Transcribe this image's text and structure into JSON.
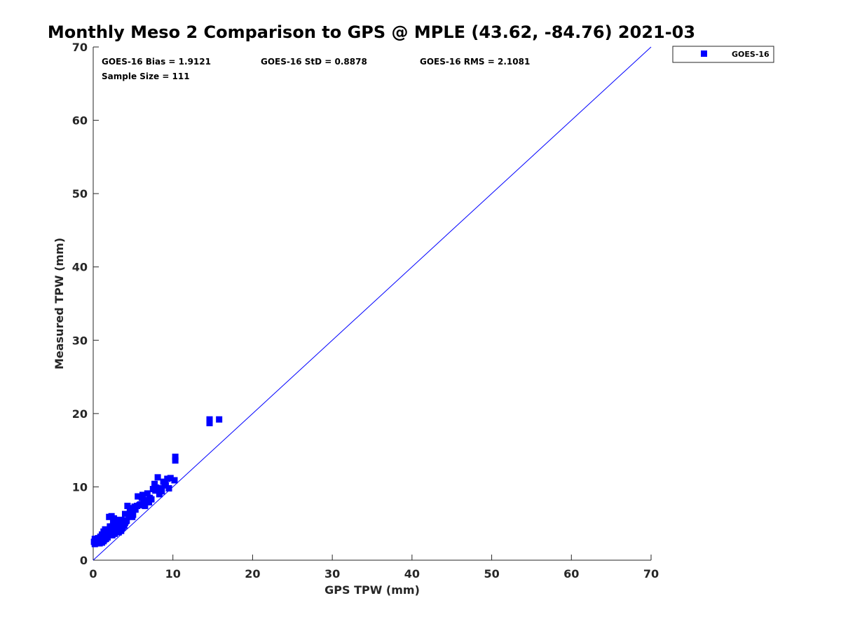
{
  "chart_data": {
    "type": "scatter",
    "title": "Monthly Meso 2 Comparison to GPS @ MPLE (43.62, -84.76) 2021-03",
    "xlabel": "GPS TPW (mm)",
    "ylabel": "Measured TPW (mm)",
    "xlim": [
      0,
      70
    ],
    "ylim": [
      0,
      70
    ],
    "xticks": [
      "0",
      "10",
      "20",
      "30",
      "40",
      "50",
      "60",
      "70"
    ],
    "yticks": [
      "0",
      "10",
      "20",
      "30",
      "40",
      "50",
      "60",
      "70"
    ],
    "grid": false,
    "legend_position": "outside-top-right",
    "stats": {
      "bias": "GOES-16 Bias = 1.9121",
      "std": "GOES-16 StD = 0.8878",
      "rms": "GOES-16 RMS = 2.1081",
      "sample": "Sample Size = 111"
    },
    "reference_line": {
      "x": [
        0,
        70
      ],
      "y": [
        0,
        70
      ],
      "color": "#0000ff"
    },
    "series": [
      {
        "name": "GOES-16",
        "color": "#0000ff",
        "marker": "square",
        "points": [
          [
            0.1,
            2.5
          ],
          [
            0.2,
            2.9
          ],
          [
            0.3,
            2.4
          ],
          [
            0.4,
            2.7
          ],
          [
            0.5,
            2.6
          ],
          [
            0.6,
            3.0
          ],
          [
            0.7,
            2.4
          ],
          [
            0.8,
            2.8
          ],
          [
            0.9,
            3.2
          ],
          [
            1.0,
            2.5
          ],
          [
            1.0,
            2.9
          ],
          [
            1.1,
            3.5
          ],
          [
            1.2,
            2.6
          ],
          [
            1.2,
            3.1
          ],
          [
            1.3,
            3.9
          ],
          [
            1.4,
            2.8
          ],
          [
            1.5,
            3.3
          ],
          [
            1.5,
            4.2
          ],
          [
            1.6,
            2.9
          ],
          [
            1.7,
            3.6
          ],
          [
            1.8,
            3.1
          ],
          [
            1.9,
            4.0
          ],
          [
            2.0,
            3.4
          ],
          [
            2.0,
            5.9
          ],
          [
            2.1,
            3.8
          ],
          [
            2.2,
            4.3
          ],
          [
            2.3,
            3.5
          ],
          [
            2.3,
            6.0
          ],
          [
            2.4,
            4.6
          ],
          [
            2.5,
            3.7
          ],
          [
            2.5,
            5.2
          ],
          [
            2.6,
            4.1
          ],
          [
            2.7,
            3.6
          ],
          [
            2.8,
            4.8
          ],
          [
            2.9,
            4.2
          ],
          [
            3.0,
            3.9
          ],
          [
            3.0,
            5.5
          ],
          [
            3.1,
            4.4
          ],
          [
            3.2,
            3.8
          ],
          [
            3.3,
            5.0
          ],
          [
            3.4,
            4.6
          ],
          [
            3.5,
            4.0
          ],
          [
            3.6,
            5.2
          ],
          [
            3.7,
            4.5
          ],
          [
            3.8,
            4.8
          ],
          [
            4.0,
            5.1
          ],
          [
            4.0,
            6.3
          ],
          [
            4.2,
            5.4
          ],
          [
            4.3,
            7.4
          ],
          [
            4.5,
            6.0
          ],
          [
            4.7,
            6.5
          ],
          [
            4.8,
            7.1
          ],
          [
            5.0,
            6.2
          ],
          [
            5.2,
            7.3
          ],
          [
            5.5,
            7.4
          ],
          [
            5.6,
            8.7
          ],
          [
            5.9,
            7.6
          ],
          [
            6.1,
            8.5
          ],
          [
            6.2,
            8.9
          ],
          [
            6.5,
            7.4
          ],
          [
            6.6,
            8.1
          ],
          [
            6.8,
            9.1
          ],
          [
            7.0,
            7.9
          ],
          [
            7.1,
            8.5
          ],
          [
            7.5,
            9.7
          ],
          [
            7.7,
            10.4
          ],
          [
            7.9,
            9.9
          ],
          [
            8.1,
            11.3
          ],
          [
            8.3,
            9.0
          ],
          [
            8.5,
            9.8
          ],
          [
            8.8,
            10.7
          ],
          [
            9.1,
            10.2
          ],
          [
            9.3,
            11.1
          ],
          [
            9.5,
            9.8
          ],
          [
            9.7,
            11.2
          ],
          [
            10.2,
            10.9
          ],
          [
            10.3,
            13.6
          ],
          [
            10.3,
            14.1
          ],
          [
            14.6,
            18.7
          ],
          [
            14.6,
            19.2
          ],
          [
            15.8,
            19.2
          ],
          [
            0.2,
            2.2
          ],
          [
            0.4,
            2.3
          ],
          [
            0.6,
            2.5
          ],
          [
            0.8,
            2.3
          ],
          [
            1.1,
            2.4
          ],
          [
            1.3,
            2.6
          ],
          [
            1.6,
            3.2
          ],
          [
            1.8,
            3.7
          ],
          [
            2.1,
            4.6
          ],
          [
            2.4,
            3.4
          ],
          [
            2.6,
            5.7
          ],
          [
            2.8,
            4.0
          ],
          [
            3.1,
            4.9
          ],
          [
            3.3,
            4.3
          ],
          [
            3.5,
            5.5
          ],
          [
            3.9,
            4.7
          ],
          [
            4.1,
            5.3
          ],
          [
            4.6,
            6.8
          ],
          [
            4.9,
            5.9
          ],
          [
            5.3,
            6.9
          ],
          [
            5.8,
            7.5
          ],
          [
            6.3,
            7.7
          ],
          [
            6.9,
            8.2
          ],
          [
            7.3,
            8.3
          ],
          [
            7.8,
            9.5
          ],
          [
            8.6,
            9.4
          ],
          [
            9.0,
            10.5
          ],
          [
            0.3,
            2.8
          ],
          [
            1.4,
            3.4
          ],
          [
            2.2,
            3.9
          ],
          [
            3.6,
            4.4
          ]
        ]
      }
    ]
  }
}
